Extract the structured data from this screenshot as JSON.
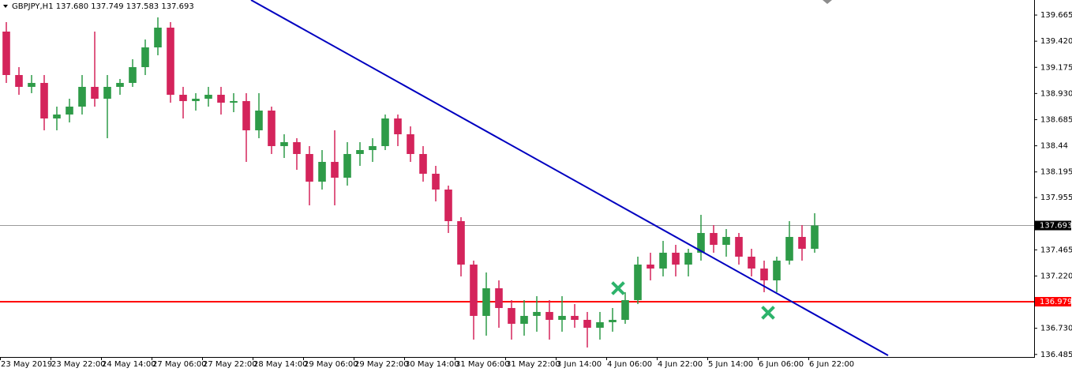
{
  "chart_data": {
    "type": "candlestick",
    "title": "GBPJPY,H1  137.680 137.749 137.583 137.693",
    "up_color": "#2e9b48",
    "down_color": "#d4245b",
    "candles": {
      "x": [
        0,
        4,
        8,
        12,
        16,
        20,
        24,
        28,
        32,
        36,
        40,
        44,
        48,
        52,
        56,
        60,
        64,
        68,
        72,
        76,
        80,
        84,
        88,
        92,
        96,
        100,
        104,
        108,
        112,
        116,
        120,
        124,
        128,
        132,
        136,
        140,
        144,
        148,
        152,
        156,
        160,
        164,
        168,
        172,
        176,
        180,
        184,
        188,
        192,
        196,
        200,
        204,
        208,
        212,
        216,
        220,
        224,
        228,
        232,
        236,
        240,
        244,
        248,
        252,
        256
      ],
      "open": [
        139.51,
        139.103,
        138.992,
        139.029,
        138.696,
        138.733,
        138.807,
        138.992,
        138.881,
        138.992,
        139.029,
        139.177,
        139.362,
        139.547,
        138.918,
        138.859,
        138.881,
        138.918,
        138.844,
        138.859,
        138.585,
        138.77,
        138.437,
        138.474,
        138.363,
        138.104,
        138.289,
        138.141,
        138.363,
        138.4,
        138.437,
        138.696,
        138.548,
        138.363,
        138.178,
        138.03,
        137.734,
        137.327,
        136.846,
        137.105,
        136.92,
        136.772,
        136.846,
        136.883,
        136.809,
        136.846,
        136.809,
        136.735,
        136.787,
        136.809,
        136.994,
        137.327,
        137.29,
        137.438,
        137.327,
        137.438,
        137.623,
        137.512,
        137.586,
        137.401,
        137.29,
        137.179,
        137.364,
        137.586,
        137.475
      ],
      "high": [
        139.599,
        139.177,
        139.103,
        139.103,
        138.807,
        138.881,
        139.103,
        139.51,
        139.103,
        139.066,
        139.251,
        139.436,
        139.643,
        139.599,
        138.992,
        138.933,
        138.992,
        138.992,
        138.933,
        138.933,
        138.933,
        138.807,
        138.548,
        138.511,
        138.437,
        138.4,
        138.585,
        138.474,
        138.474,
        138.511,
        138.733,
        138.733,
        138.622,
        138.437,
        138.252,
        138.067,
        137.771,
        137.364,
        137.253,
        137.179,
        136.994,
        136.994,
        137.031,
        136.994,
        137.031,
        136.957,
        136.883,
        136.883,
        136.92,
        137.068,
        137.401,
        137.438,
        137.549,
        137.512,
        137.475,
        137.793,
        137.697,
        137.66,
        137.623,
        137.475,
        137.364,
        137.401,
        137.734,
        137.697,
        137.808
      ],
      "low": [
        139.029,
        138.918,
        138.933,
        138.585,
        138.585,
        138.659,
        138.733,
        138.807,
        138.511,
        138.918,
        138.992,
        139.103,
        139.288,
        138.844,
        138.696,
        138.77,
        138.807,
        138.733,
        138.755,
        138.289,
        138.511,
        138.363,
        138.326,
        138.215,
        137.882,
        138.03,
        137.882,
        138.067,
        138.252,
        138.289,
        138.4,
        138.437,
        138.289,
        138.104,
        137.919,
        137.623,
        137.216,
        136.624,
        136.661,
        136.735,
        136.624,
        136.661,
        136.698,
        136.624,
        136.698,
        136.735,
        136.55,
        136.624,
        136.698,
        136.772,
        136.957,
        137.179,
        137.216,
        137.216,
        137.216,
        137.364,
        137.438,
        137.401,
        137.327,
        137.216,
        137.068,
        137.068,
        137.327,
        137.364,
        137.438
      ],
      "close": [
        139.103,
        138.992,
        139.029,
        138.696,
        138.733,
        138.807,
        138.992,
        138.881,
        138.992,
        139.029,
        139.177,
        139.362,
        139.547,
        138.918,
        138.859,
        138.881,
        138.918,
        138.844,
        138.859,
        138.585,
        138.77,
        138.437,
        138.474,
        138.363,
        138.104,
        138.289,
        138.141,
        138.363,
        138.4,
        138.437,
        138.696,
        138.548,
        138.363,
        138.178,
        138.03,
        137.734,
        137.327,
        136.846,
        137.105,
        136.92,
        136.772,
        136.846,
        136.883,
        136.809,
        136.846,
        136.809,
        136.735,
        136.787,
        136.809,
        136.994,
        137.327,
        137.29,
        137.438,
        137.327,
        137.438,
        137.623,
        137.512,
        137.586,
        137.401,
        137.29,
        137.179,
        137.364,
        137.586,
        137.475,
        137.693
      ]
    },
    "trendline": {
      "x": [
        79.5,
        281.25
      ],
      "y": [
        139.806,
        136.476
      ],
      "color": "#0000c0"
    },
    "hlines": [
      {
        "value": 137.693,
        "color": "#9a9a9a",
        "tag_color": "#000000"
      },
      {
        "value": 136.979,
        "color": "#ff0000",
        "tag_color": "#ff0000"
      }
    ],
    "markers": {
      "x": [
        195.75,
        243.25
      ],
      "y": [
        137.105,
        136.876
      ],
      "color": "#2db36b"
    },
    "xlim": [
      0,
      327.5
    ],
    "xticks": [
      {
        "value": 0,
        "label": "23 May 2019"
      },
      {
        "value": 16,
        "label": "23 May 22:00"
      },
      {
        "value": 32,
        "label": "24 May 14:00"
      },
      {
        "value": 48,
        "label": "27 May 06:00"
      },
      {
        "value": 64,
        "label": "27 May 22:00"
      },
      {
        "value": 80,
        "label": "28 May 14:00"
      },
      {
        "value": 96,
        "label": "29 May 06:00"
      },
      {
        "value": 112,
        "label": "29 May 22:00"
      },
      {
        "value": 128,
        "label": "30 May 14:00"
      },
      {
        "value": 144,
        "label": "31 May 06:00"
      },
      {
        "value": 160,
        "label": "31 May 22:00"
      },
      {
        "value": 176,
        "label": "3 Jun 14:00"
      },
      {
        "value": 192,
        "label": "4 Jun 06:00"
      },
      {
        "value": 208,
        "label": "4 Jun 22:00"
      },
      {
        "value": 224,
        "label": "5 Jun 14:00"
      },
      {
        "value": 240,
        "label": "6 Jun 06:00"
      },
      {
        "value": 256,
        "label": "6 Jun 22:00"
      }
    ],
    "ylim": [
      136.461,
      139.806
    ],
    "yticks": [
      139.665,
      {
        "value": 139.42,
        "label": "139.420"
      },
      139.175,
      {
        "value": 138.93,
        "label": "138.930"
      },
      138.685,
      138.44,
      138.195,
      137.955,
      137.465,
      {
        "value": 137.22,
        "label": "137.220"
      },
      {
        "value": 136.73,
        "label": "136.730"
      },
      136.485
    ]
  }
}
